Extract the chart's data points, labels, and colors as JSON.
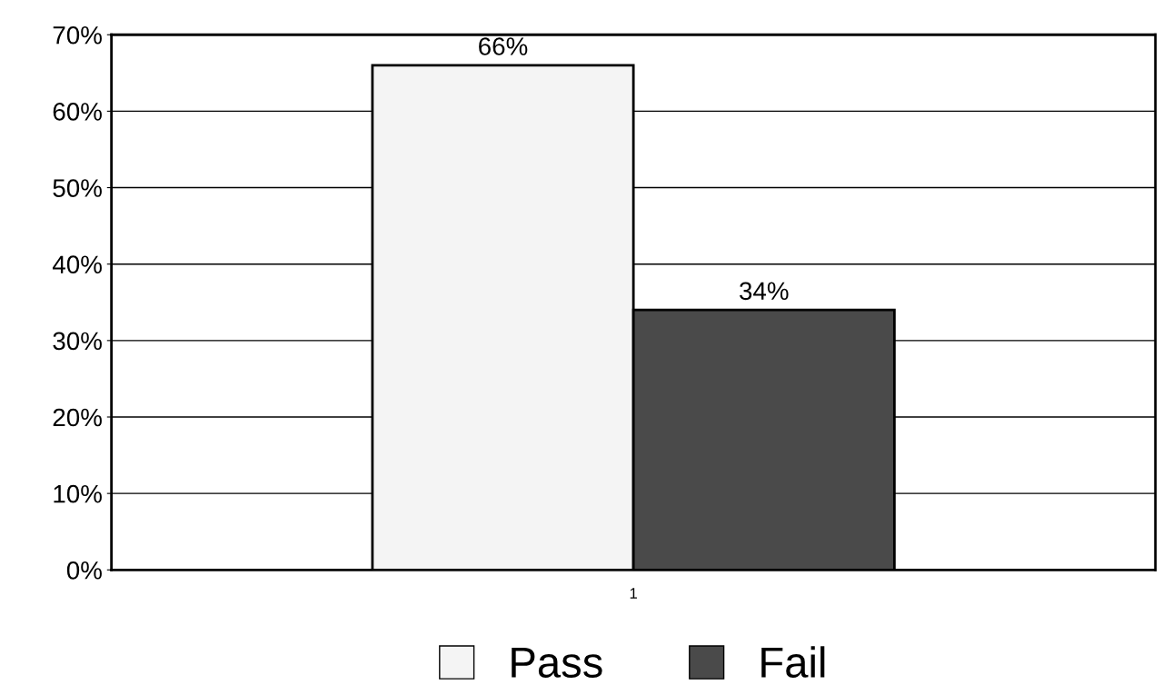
{
  "chart_data": {
    "type": "bar",
    "categories": [
      "1"
    ],
    "series": [
      {
        "name": "Pass",
        "color": "#f4f4f4",
        "values": [
          66
        ],
        "value_labels": [
          "66%"
        ]
      },
      {
        "name": "Fail",
        "color": "#4a4a4a",
        "values": [
          34
        ],
        "value_labels": [
          "34%"
        ]
      }
    ],
    "ylim": [
      0,
      70
    ],
    "yticks": [
      {
        "value": 0,
        "label": "0%"
      },
      {
        "value": 10,
        "label": "10%"
      },
      {
        "value": 20,
        "label": "20%"
      },
      {
        "value": 30,
        "label": "30%"
      },
      {
        "value": 40,
        "label": "40%"
      },
      {
        "value": 50,
        "label": "50%"
      },
      {
        "value": 60,
        "label": "60%"
      },
      {
        "value": 70,
        "label": "70%"
      }
    ],
    "grid": "y",
    "legend": "bottom"
  }
}
